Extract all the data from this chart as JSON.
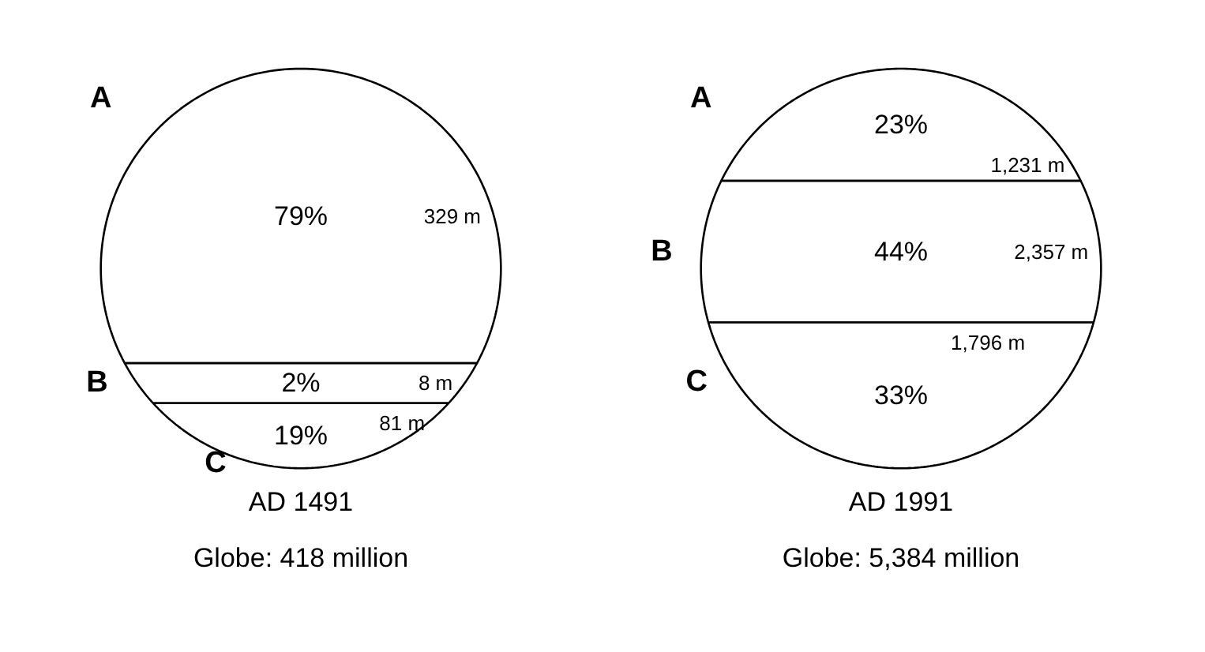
{
  "chart_data": [
    {
      "type": "other",
      "xlabel": "AD 1491",
      "subtitle": "Globe: 418 million",
      "categories": [
        "A",
        "B",
        "C"
      ],
      "values": [
        79,
        2,
        19
      ],
      "value_labels": [
        "79%",
        "2%",
        "19%"
      ],
      "annotations": [
        "329 m",
        "8 m",
        "81 m"
      ]
    },
    {
      "type": "other",
      "xlabel": "AD 1991",
      "subtitle": "Globe: 5,384 million",
      "categories": [
        "A",
        "B",
        "C"
      ],
      "values": [
        23,
        44,
        33
      ],
      "value_labels": [
        "23%",
        "44%",
        "33%"
      ],
      "annotations": [
        "1,231 m",
        "2,357 m",
        "1,796 m"
      ]
    }
  ]
}
